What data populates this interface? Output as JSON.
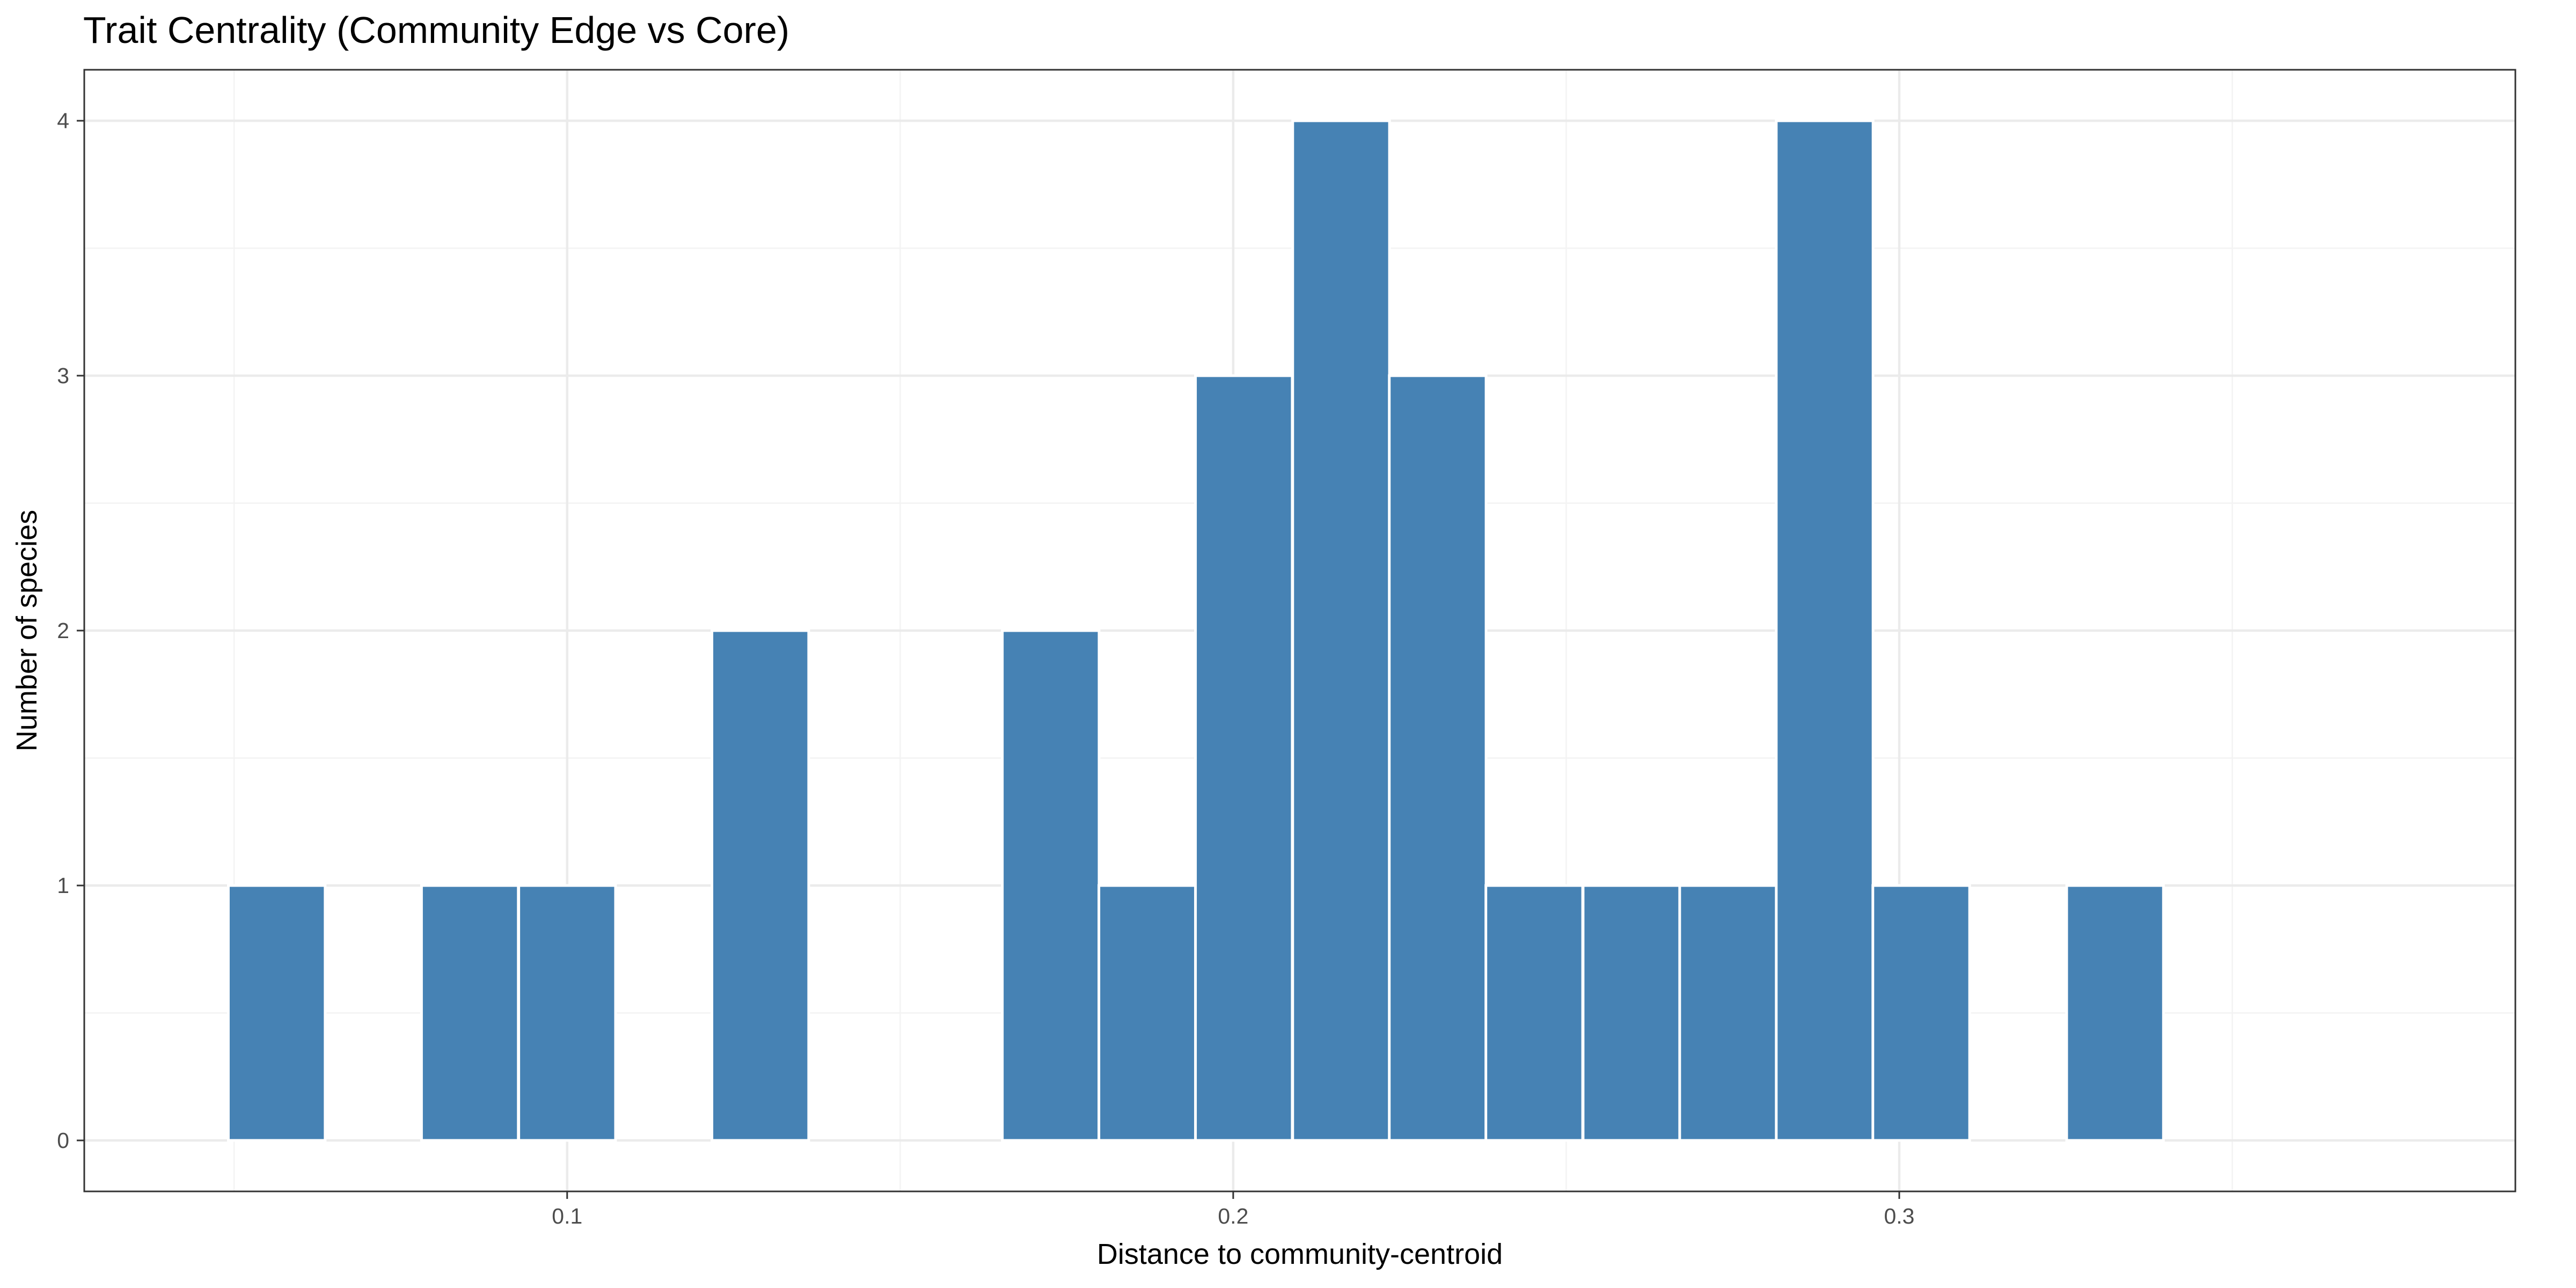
{
  "chart_data": {
    "type": "bar",
    "title": "Trait Centrality (Community Edge vs Core)",
    "xlabel": "Distance to community-centroid",
    "ylabel": "Number of species",
    "bar_color": "#4682B4",
    "xlim": [
      0.0275,
      0.3925
    ],
    "ylim": [
      -0.2,
      4.2
    ],
    "x_ticks": [
      0.1,
      0.2,
      0.3
    ],
    "y_ticks": [
      0,
      1,
      2,
      3,
      4
    ],
    "grid": true,
    "bin_width": 0.014533,
    "bars": [
      {
        "x": 0.0564,
        "value": 1
      },
      {
        "x": 0.0854,
        "value": 1
      },
      {
        "x": 0.1,
        "value": 1
      },
      {
        "x": 0.129,
        "value": 2
      },
      {
        "x": 0.1726,
        "value": 2
      },
      {
        "x": 0.1871,
        "value": 1
      },
      {
        "x": 0.2016,
        "value": 3
      },
      {
        "x": 0.2162,
        "value": 4
      },
      {
        "x": 0.2307,
        "value": 3
      },
      {
        "x": 0.2452,
        "value": 1
      },
      {
        "x": 0.2598,
        "value": 1
      },
      {
        "x": 0.2743,
        "value": 1
      },
      {
        "x": 0.2888,
        "value": 4
      },
      {
        "x": 0.3033,
        "value": 1
      },
      {
        "x": 0.3324,
        "value": 1
      }
    ]
  }
}
